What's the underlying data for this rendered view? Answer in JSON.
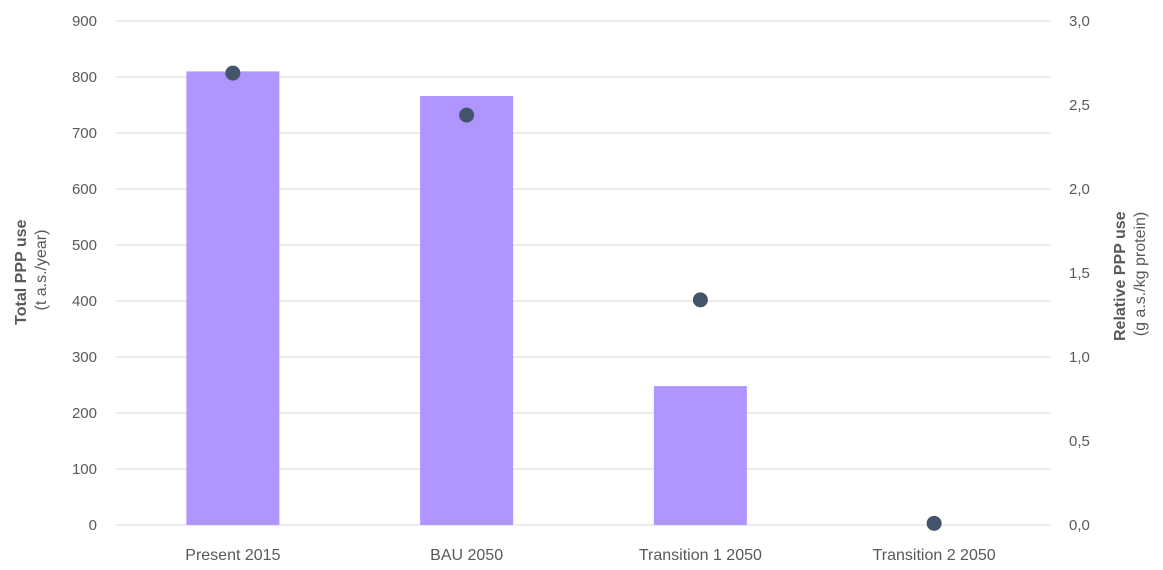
{
  "chart_data": {
    "type": "bar",
    "categories": [
      "Present 2015",
      "BAU 2050",
      "Transition 1 2050",
      "Transition 2 2050"
    ],
    "series": [
      {
        "axis": "left",
        "type": "bar",
        "color": "#b095ff",
        "values": [
          810,
          766,
          248,
          0
        ]
      },
      {
        "axis": "right",
        "type": "scatter",
        "color": "#44546a",
        "values": [
          2.69,
          2.44,
          1.34,
          0.01
        ]
      }
    ],
    "ylabel": "Total PPP use",
    "ylabel_unit": "(t a.s./year)",
    "y2label": "Relative PPP use",
    "y2label_unit": "(g a.s./kg protein)",
    "ylim": [
      0,
      900
    ],
    "y2lim": [
      0,
      3
    ],
    "yticks": [
      "0",
      "100",
      "200",
      "300",
      "400",
      "500",
      "600",
      "700",
      "800",
      "900"
    ],
    "y2ticks": [
      "0,0",
      "0,5",
      "1,0",
      "1,5",
      "2,0",
      "2,5",
      "3,0"
    ],
    "grid": true,
    "legend": "none"
  }
}
